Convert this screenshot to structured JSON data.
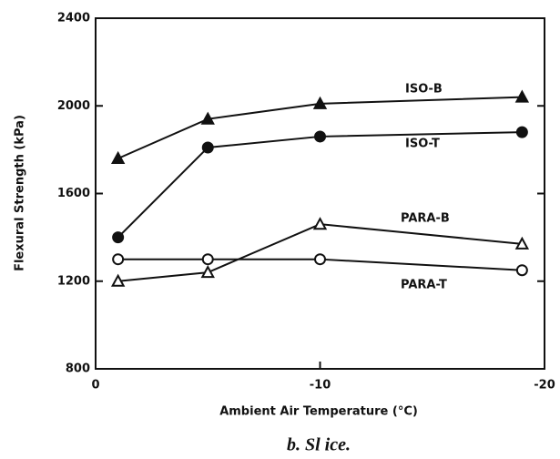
{
  "chart_data": {
    "type": "line",
    "xlabel": "Ambient Air Temperature (°C)",
    "ylabel": "Flexural Strength (kPa)",
    "caption": "b. Sl ice.",
    "xlim": [
      0,
      -20
    ],
    "xticks": [
      0,
      -10,
      -20
    ],
    "ylim": [
      800,
      2400
    ],
    "yticks": [
      800,
      1200,
      1600,
      2000,
      2400
    ],
    "series": [
      {
        "name": "ISO-B",
        "color": "#111111",
        "marker": "triangle",
        "filled": true,
        "x": [
          -1,
          -5,
          -10,
          -19
        ],
        "values": [
          1760,
          1940,
          2010,
          2040
        ]
      },
      {
        "name": "ISO-T",
        "color": "#111111",
        "marker": "circle",
        "filled": true,
        "x": [
          -1,
          -5,
          -10,
          -19
        ],
        "values": [
          1400,
          1810,
          1860,
          1880
        ]
      },
      {
        "name": "PARA-B",
        "color": "#111111",
        "marker": "triangle",
        "filled": false,
        "x": [
          -1,
          -5,
          -10,
          -19
        ],
        "values": [
          1200,
          1240,
          1460,
          1370
        ]
      },
      {
        "name": "PARA-T",
        "color": "#111111",
        "marker": "circle",
        "filled": false,
        "x": [
          -1,
          -5,
          -10,
          -19
        ],
        "values": [
          1300,
          1300,
          1300,
          1250
        ]
      }
    ]
  }
}
